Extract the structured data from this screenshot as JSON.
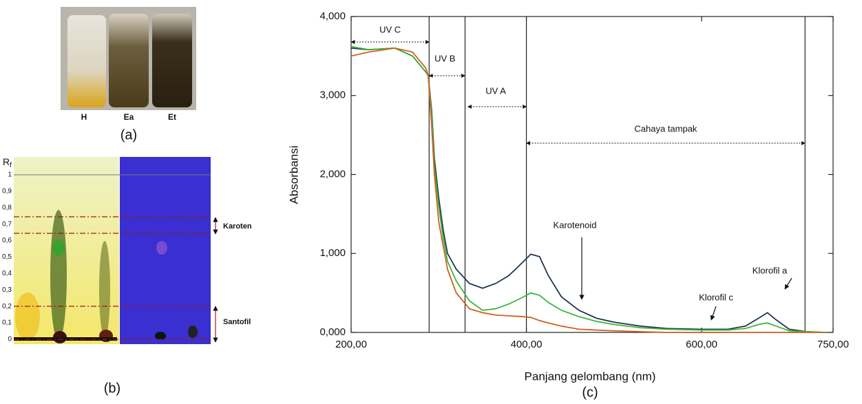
{
  "panel_a": {
    "labels": [
      "H",
      "Ea",
      "Et"
    ],
    "caption": "(a)"
  },
  "panel_b": {
    "rf_label": "R",
    "rf_sub": "f",
    "rf_ticks": [
      "1",
      "0,9",
      "0,8",
      "0,7",
      "0,6",
      "0,5",
      "0,4",
      "0,3",
      "0,2",
      "0,1",
      "0"
    ],
    "karoten": "Karoten",
    "santofil": "Santofil",
    "caption": "(b)"
  },
  "chart_data": {
    "type": "line",
    "x_label": "Panjang gelombang (nm)",
    "y_label": "Absorbansi",
    "caption": "(c)",
    "x": [
      200,
      220,
      250,
      270,
      285,
      288,
      292,
      295,
      300,
      305,
      310,
      320,
      335,
      350,
      365,
      380,
      395,
      405,
      415,
      425,
      440,
      460,
      480,
      500,
      530,
      560,
      600,
      630,
      650,
      665,
      675,
      685,
      700,
      720,
      740
    ],
    "series": [
      {
        "color": "#1e3550",
        "values": [
          3.6,
          3.58,
          3.6,
          3.5,
          3.3,
          3.25,
          2.8,
          2.2,
          1.7,
          1.3,
          1.0,
          0.8,
          0.62,
          0.56,
          0.62,
          0.72,
          0.88,
          0.99,
          0.96,
          0.72,
          0.45,
          0.28,
          0.18,
          0.13,
          0.08,
          0.05,
          0.04,
          0.04,
          0.08,
          0.18,
          0.25,
          0.16,
          0.04,
          0.01,
          0
        ]
      },
      {
        "color": "#3cb43c",
        "values": [
          3.62,
          3.58,
          3.6,
          3.5,
          3.3,
          3.25,
          2.75,
          2.1,
          1.6,
          1.2,
          0.9,
          0.65,
          0.4,
          0.28,
          0.3,
          0.36,
          0.44,
          0.5,
          0.47,
          0.38,
          0.28,
          0.2,
          0.14,
          0.1,
          0.06,
          0.04,
          0.03,
          0.03,
          0.05,
          0.1,
          0.12,
          0.08,
          0.02,
          0.01,
          0
        ]
      },
      {
        "color": "#d2601a",
        "values": [
          3.5,
          3.55,
          3.6,
          3.55,
          3.35,
          3.25,
          2.6,
          2.0,
          1.4,
          1.1,
          0.8,
          0.5,
          0.3,
          0.25,
          0.22,
          0.21,
          0.2,
          0.19,
          0.15,
          0.12,
          0.08,
          0.04,
          0.03,
          0.02,
          0.01,
          0,
          0,
          0,
          0,
          0,
          0,
          0,
          0,
          0,
          0
        ]
      }
    ],
    "xlim": [
      200,
      750
    ],
    "xticks": [
      {
        "value": 200,
        "label": "200,00"
      },
      {
        "value": 400,
        "label": "400,00"
      },
      {
        "value": 600,
        "label": "600,00"
      },
      {
        "value": 750,
        "label": "750,00"
      }
    ],
    "ylim": [
      0,
      4
    ],
    "yticks": [
      {
        "value": 0,
        "label": "0,000"
      },
      {
        "value": 1,
        "label": "1,000"
      },
      {
        "value": 2,
        "label": "2,000"
      },
      {
        "value": 3,
        "label": "3,000"
      },
      {
        "value": 4,
        "label": "4,000"
      }
    ],
    "region_lines": [
      289,
      330,
      400,
      718
    ],
    "annotations": [
      "UV C",
      "UV B",
      "UV A",
      "Cahaya tampak",
      "Karotenoid",
      "Klorofil c",
      "Klorofil a"
    ]
  }
}
